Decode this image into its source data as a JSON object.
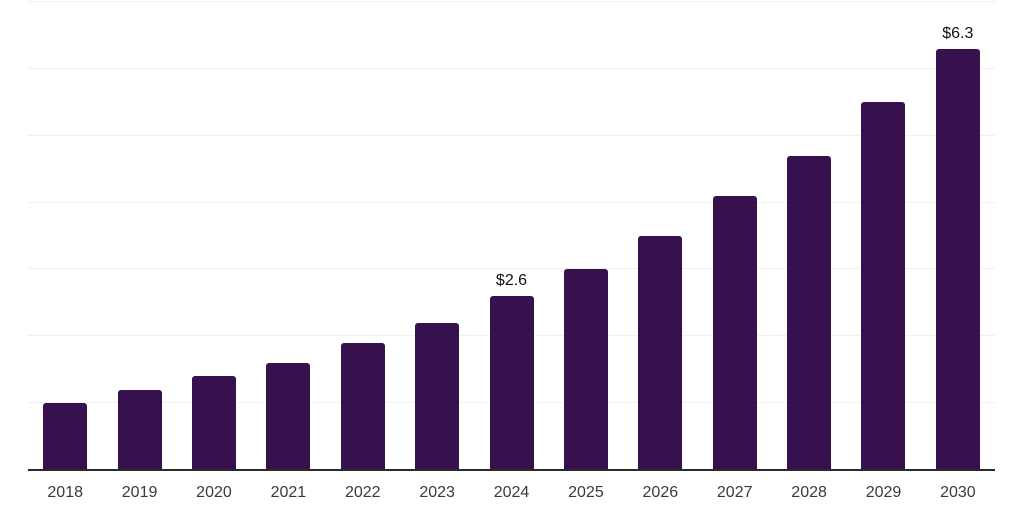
{
  "chart_data": {
    "type": "bar",
    "title": "",
    "xlabel": "",
    "ylabel": "",
    "categories": [
      "2018",
      "2019",
      "2020",
      "2021",
      "2022",
      "2023",
      "2024",
      "2025",
      "2026",
      "2027",
      "2028",
      "2029",
      "2030"
    ],
    "values": [
      1.0,
      1.2,
      1.4,
      1.6,
      1.9,
      2.2,
      2.6,
      3.0,
      3.5,
      4.1,
      4.7,
      5.5,
      6.3
    ],
    "data_labels": [
      "",
      "",
      "",
      "",
      "",
      "",
      "$2.6",
      "",
      "",
      "",
      "",
      "",
      "$6.3"
    ],
    "ylim": [
      0,
      7
    ],
    "gridlines": "horizontal-on",
    "legend": "none",
    "colors": {
      "bar": "#36114e",
      "gridline": "#f0f0f0",
      "axis_line": "#2b2b2b",
      "tick_label": "#3a3a3a",
      "value_label": "#111111",
      "background": "#ffffff"
    }
  }
}
